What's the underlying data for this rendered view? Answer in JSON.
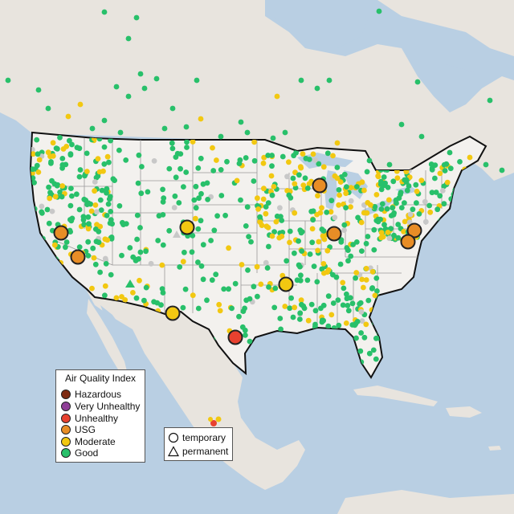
{
  "legend": {
    "title": "Air Quality Index",
    "items": [
      {
        "label": "Hazardous",
        "color": "#7e2a12"
      },
      {
        "label": "Very Unhealthy",
        "color": "#8f3f97"
      },
      {
        "label": "Unhealthy",
        "color": "#e8412f"
      },
      {
        "label": "USG",
        "color": "#e88d26"
      },
      {
        "label": "Moderate",
        "color": "#f2c811"
      },
      {
        "label": "Good",
        "color": "#28c06a"
      }
    ]
  },
  "shape_legend": {
    "items": [
      {
        "label": "temporary",
        "shape": "circle"
      },
      {
        "label": "permanent",
        "shape": "triangle"
      }
    ]
  },
  "colors": {
    "ocean": "#b9cfe3",
    "land": "#e8e4de",
    "us_land": "#f3f1ee",
    "border": "#111111",
    "state_lines": "#9a9a9a",
    "good": "#28c06a",
    "moderate": "#f2c811",
    "usg": "#e88d26",
    "unhealthy": "#e8412f",
    "no_data": "#c8c8c8"
  }
}
